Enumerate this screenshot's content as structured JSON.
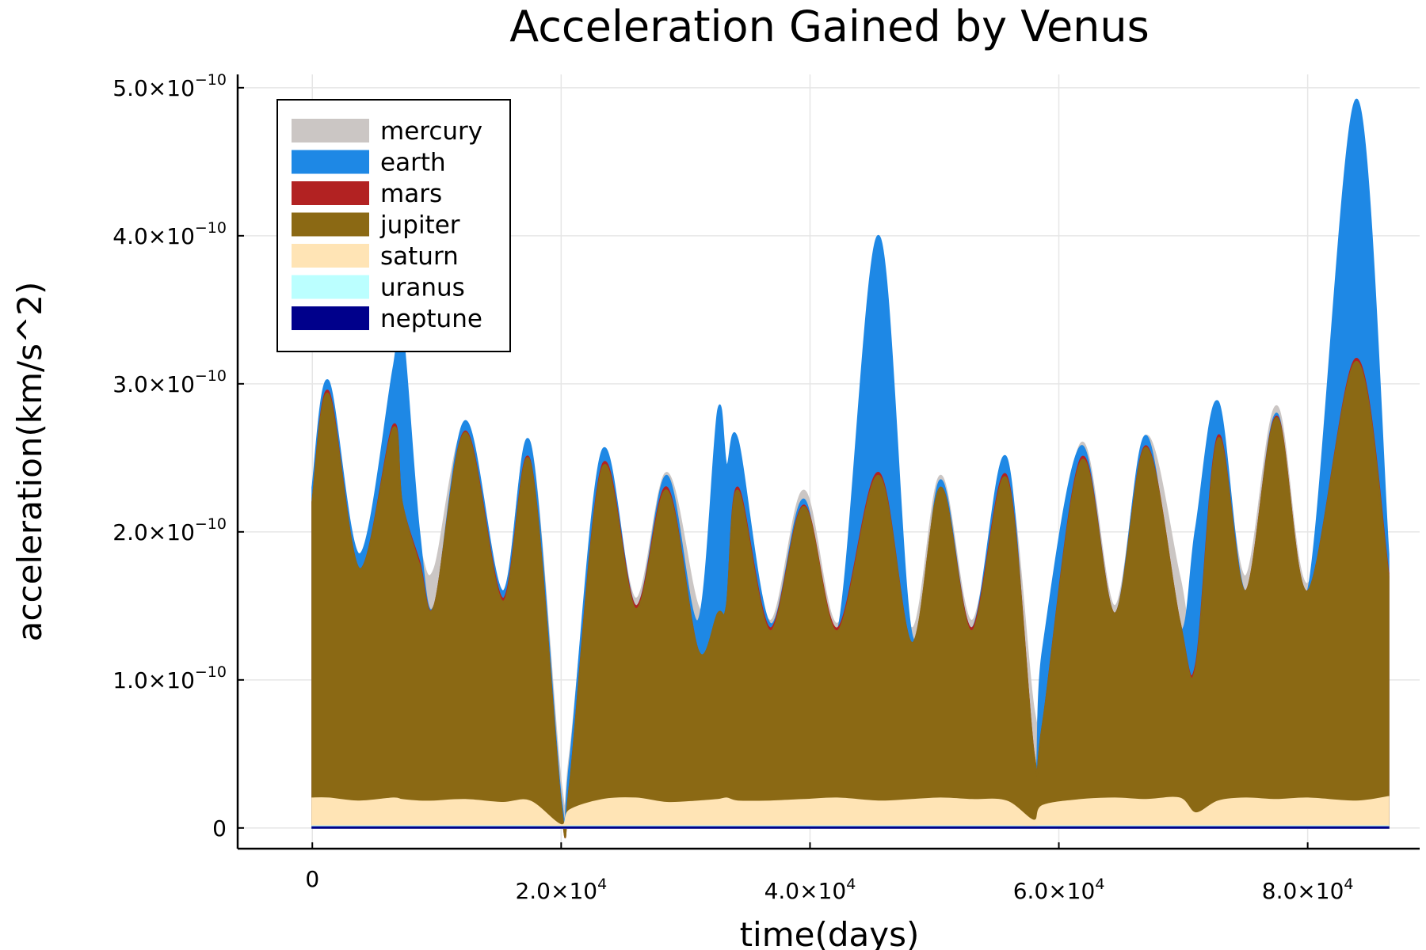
{
  "chart_data": {
    "type": "area",
    "title": "Acceleration Gained by Venus",
    "xlabel": "time(days)",
    "ylabel": "acceleration(km/s^2)",
    "xlim": [
      -6000,
      89000
    ],
    "ylim": [
      -1.4e-11,
      5.09e-10
    ],
    "grid": true,
    "legend_position": "top-left",
    "x_ticks": [
      {
        "value": 0,
        "base": "0",
        "exp": ""
      },
      {
        "value": 20000,
        "base": "2.0×10",
        "exp": "4"
      },
      {
        "value": 40000,
        "base": "4.0×10",
        "exp": "4"
      },
      {
        "value": 60000,
        "base": "6.0×10",
        "exp": "4"
      },
      {
        "value": 80000,
        "base": "8.0×10",
        "exp": "4"
      }
    ],
    "y_ticks": [
      {
        "value": 0,
        "base": "0",
        "exp": ""
      },
      {
        "value": 1e-10,
        "base": "1.0×10",
        "exp": "−10"
      },
      {
        "value": 2e-10,
        "base": "2.0×10",
        "exp": "−10"
      },
      {
        "value": 3e-10,
        "base": "3.0×10",
        "exp": "−10"
      },
      {
        "value": 4e-10,
        "base": "4.0×10",
        "exp": "−10"
      },
      {
        "value": 5e-10,
        "base": "5.0×10",
        "exp": "−10"
      }
    ],
    "x": [
      0,
      1300,
      3800,
      6500,
      7200,
      8600,
      9800,
      12300,
      15300,
      17500,
      20000,
      20700,
      23300,
      26000,
      28500,
      31000,
      32600,
      33300,
      34200,
      36800,
      39500,
      42200,
      45500,
      48200,
      50500,
      53000,
      55800,
      58000,
      58700,
      61800,
      64500,
      67000,
      69700,
      71000,
      72800,
      75000,
      77500,
      80000,
      83900,
      86500
    ],
    "series": [
      {
        "name": "mercury",
        "color": "#cbc6c4",
        "values": [
          2.25e-10,
          2.95e-10,
          1.8e-10,
          2.7e-10,
          2.4e-10,
          1.9e-10,
          1.75e-10,
          2.7e-10,
          1.6e-10,
          2.6e-10,
          3e-11,
          5e-11,
          2.45e-10,
          1.55e-10,
          2.4e-10,
          1.5e-10,
          1.5e-10,
          2.2e-10,
          2.3e-10,
          1.4e-10,
          2.28e-10,
          1.38e-10,
          2.4e-10,
          1.35e-10,
          2.38e-10,
          1.4e-10,
          2.4e-10,
          8e-11,
          1e-10,
          2.6e-10,
          1.5e-10,
          2.65e-10,
          1.7e-10,
          1.25e-10,
          2.65e-10,
          1.7e-10,
          2.85e-10,
          1.65e-10,
          3.15e-10,
          1.8e-10
        ]
      },
      {
        "name": "earth",
        "color": "#1e88e5",
        "values": [
          2.3e-10,
          3.02e-10,
          1.85e-10,
          3.1e-10,
          3.4e-10,
          2e-10,
          1.5e-10,
          2.75e-10,
          1.6e-10,
          2.6e-10,
          2e-11,
          4.5e-11,
          2.55e-10,
          1.5e-10,
          2.38e-10,
          1.4e-10,
          2.82e-10,
          2.45e-10,
          2.62e-10,
          1.38e-10,
          2.22e-10,
          1.32e-10,
          4e-10,
          1.3e-10,
          2.35e-10,
          1.35e-10,
          2.5e-10,
          4e-11,
          1.2e-10,
          2.58e-10,
          1.45e-10,
          2.65e-10,
          1.35e-10,
          2.02e-10,
          2.88e-10,
          1.6e-10,
          2.8e-10,
          1.6e-10,
          4.92e-10,
          1.85e-10
        ]
      },
      {
        "name": "mars",
        "color": "#b22222",
        "values": [
          2.2e-10,
          2.95e-10,
          1.75e-10,
          2.72e-10,
          2.2e-10,
          1.8e-10,
          1.5e-10,
          2.68e-10,
          1.55e-10,
          2.48e-10,
          1.5e-11,
          3e-11,
          2.45e-10,
          1.5e-10,
          2.3e-10,
          1.2e-10,
          1.45e-10,
          1.5e-10,
          2.3e-10,
          1.35e-10,
          2.18e-10,
          1.35e-10,
          2.4e-10,
          1.25e-10,
          2.3e-10,
          1.35e-10,
          2.38e-10,
          5e-11,
          7e-11,
          2.5e-10,
          1.45e-10,
          2.58e-10,
          1.4e-10,
          1.1e-10,
          2.65e-10,
          1.6e-10,
          2.78e-10,
          1.6e-10,
          3.17e-10,
          1.72e-10
        ]
      },
      {
        "name": "jupiter",
        "color": "#8b6914",
        "values": [
          2.2e-10,
          2.93e-10,
          1.75e-10,
          2.7e-10,
          2.2e-10,
          1.78e-10,
          1.5e-10,
          2.67e-10,
          1.53e-10,
          2.47e-10,
          1.5e-11,
          3e-11,
          2.43e-10,
          1.48e-10,
          2.28e-10,
          1.2e-10,
          1.45e-10,
          1.5e-10,
          2.28e-10,
          1.33e-10,
          2.17e-10,
          1.33e-10,
          2.38e-10,
          1.25e-10,
          2.3e-10,
          1.33e-10,
          2.36e-10,
          5e-11,
          7e-11,
          2.48e-10,
          1.45e-10,
          2.57e-10,
          1.4e-10,
          1.08e-10,
          2.63e-10,
          1.6e-10,
          2.77e-10,
          1.6e-10,
          3.15e-10,
          1.7e-10
        ]
      },
      {
        "name": "saturn",
        "color": "#ffe4b5",
        "values": [
          2e-11,
          2e-11,
          1.8e-11,
          2e-11,
          1.9e-11,
          1.8e-11,
          1.8e-11,
          1.9e-11,
          1.7e-11,
          1.8e-11,
          2e-12,
          1.2e-11,
          1.9e-11,
          2e-11,
          1.7e-11,
          1.8e-11,
          1.9e-11,
          2e-11,
          1.8e-11,
          1.8e-11,
          1.9e-11,
          2e-11,
          1.8e-11,
          1.9e-11,
          2e-11,
          1.9e-11,
          1.8e-11,
          5e-12,
          1.5e-11,
          1.9e-11,
          2e-11,
          1.9e-11,
          2e-11,
          1e-11,
          1.8e-11,
          2e-11,
          1.9e-11,
          2e-11,
          1.8e-11,
          2.1e-11
        ]
      },
      {
        "name": "uranus",
        "color": "#bbffff",
        "values": [
          1.2e-12,
          1.2e-12,
          1.2e-12,
          1.2e-12,
          1.2e-12,
          1.2e-12,
          1.2e-12,
          1.2e-12,
          1.2e-12,
          1.2e-12,
          1e-12,
          1.2e-12,
          1.2e-12,
          1.2e-12,
          1.2e-12,
          1.2e-12,
          1.2e-12,
          1.2e-12,
          1.2e-12,
          1.2e-12,
          1.2e-12,
          1.2e-12,
          1.2e-12,
          1.2e-12,
          1.2e-12,
          1.2e-12,
          1.2e-12,
          1e-12,
          1.2e-12,
          1.2e-12,
          1.2e-12,
          1.2e-12,
          1.2e-12,
          1.2e-12,
          1.2e-12,
          1.2e-12,
          1.2e-12,
          1.2e-12,
          1.2e-12,
          1.2e-12
        ]
      },
      {
        "name": "neptune",
        "color": "#00008b",
        "values": [
          6e-13,
          6e-13,
          6e-13,
          6e-13,
          6e-13,
          6e-13,
          6e-13,
          6e-13,
          6e-13,
          6e-13,
          6e-13,
          6e-13,
          6e-13,
          6e-13,
          6e-13,
          6e-13,
          6e-13,
          6e-13,
          6e-13,
          6e-13,
          6e-13,
          6e-13,
          6e-13,
          6e-13,
          6e-13,
          6e-13,
          6e-13,
          6e-13,
          6e-13,
          6e-13,
          6e-13,
          6e-13,
          6e-13,
          6e-13,
          6e-13,
          6e-13,
          6e-13,
          6e-13,
          6e-13,
          6e-13
        ]
      }
    ]
  }
}
